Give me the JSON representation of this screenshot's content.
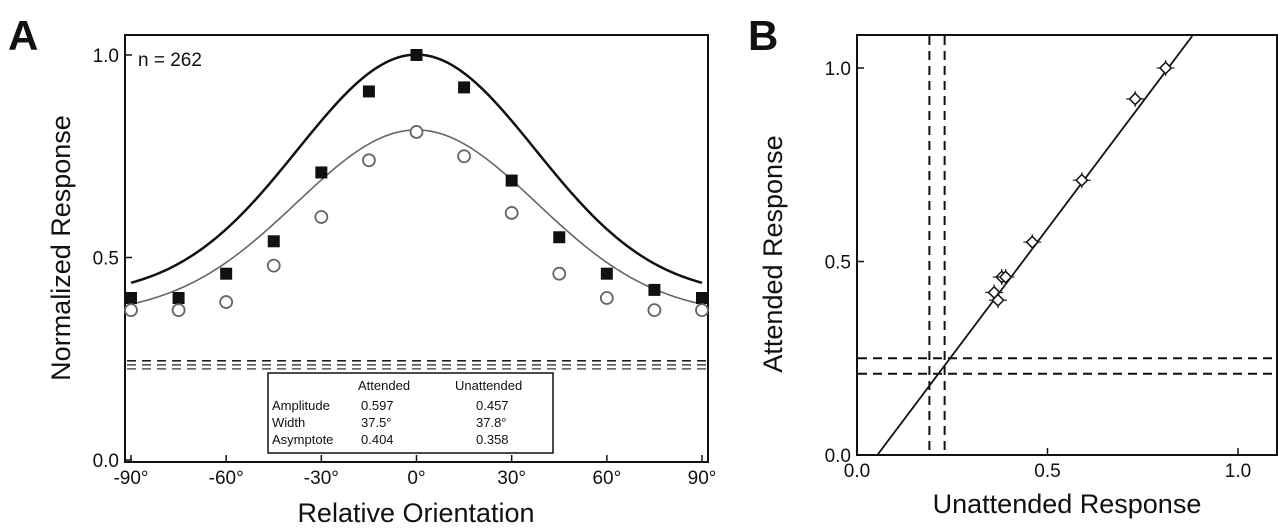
{
  "panels": [
    {
      "label": "A",
      "annotation": "n = 262",
      "xlabel": "Relative Orientation",
      "ylabel": "Normalized Response",
      "xlim": [
        -90,
        90
      ],
      "ylim": [
        0,
        1
      ],
      "xticks": [
        "-90°",
        "-60°",
        "-30°",
        "0°",
        "30°",
        "60°",
        "90°"
      ],
      "yticks": [
        "0.0",
        "0.5",
        "1.0"
      ],
      "table": {
        "headers": [
          "",
          "Attended",
          "Unattended"
        ],
        "rows": [
          [
            "Amplitude",
            "0.597",
            "0.457"
          ],
          [
            "Width",
            "37.5°",
            "37.8°"
          ],
          [
            "Asymptote",
            "0.404",
            "0.358"
          ]
        ]
      }
    },
    {
      "label": "B",
      "xlabel": "Unattended Response",
      "ylabel": "Attended Response",
      "xlim": [
        0,
        1.05
      ],
      "ylim": [
        0,
        1.05
      ],
      "xticks": [
        "0.0",
        "0.5",
        "1.0"
      ],
      "yticks": [
        "0.0",
        "0.5",
        "1.0"
      ]
    }
  ],
  "chart_data": [
    {
      "type": "line",
      "x": [
        -90,
        -75,
        -60,
        -45,
        -30,
        -15,
        0,
        15,
        30,
        45,
        60,
        75,
        90
      ],
      "series": [
        {
          "marker": "filled-square",
          "color": "#111111",
          "values": [
            0.4,
            0.4,
            0.46,
            0.54,
            0.71,
            0.91,
            1.0,
            0.92,
            0.69,
            0.55,
            0.46,
            0.42,
            0.4
          ]
        },
        {
          "marker": "open-circle",
          "color": "#666666",
          "values": [
            0.37,
            0.37,
            0.39,
            0.48,
            0.6,
            0.74,
            0.81,
            0.75,
            0.61,
            0.46,
            0.4,
            0.37,
            0.37
          ]
        }
      ],
      "fit_curves": [
        {
          "amplitude": 0.597,
          "width": 37.5,
          "asymptote": 0.404
        },
        {
          "amplitude": 0.457,
          "width": 37.8,
          "asymptote": 0.358
        }
      ],
      "baselines": [
        0.245,
        0.235,
        0.225
      ],
      "grid": false
    },
    {
      "type": "scatter",
      "points": [
        {
          "x": 0.36,
          "y": 0.42
        },
        {
          "x": 0.37,
          "y": 0.4
        },
        {
          "x": 0.38,
          "y": 0.46
        },
        {
          "x": 0.39,
          "y": 0.46
        },
        {
          "x": 0.46,
          "y": 0.55
        },
        {
          "x": 0.59,
          "y": 0.71
        },
        {
          "x": 0.73,
          "y": 0.92
        },
        {
          "x": 0.81,
          "y": 1.0
        }
      ],
      "fit_line": {
        "slope": 1.31,
        "intercept": -0.07
      },
      "vlines": [
        0.19,
        0.23
      ],
      "hlines": [
        0.25,
        0.21
      ],
      "grid": false
    }
  ]
}
